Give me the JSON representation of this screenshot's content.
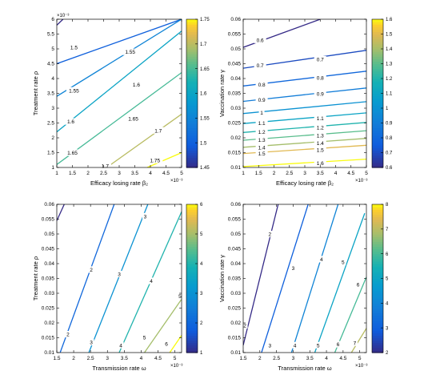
{
  "figure": {
    "background": "#ffffff"
  },
  "chart_data": [
    {
      "type": "contour",
      "xlabel": "Efficacy losing rate β₂",
      "ylabel": "Treatment rate ρ",
      "x_exponent": "×10⁻³",
      "y_exponent": "×10⁻³",
      "xlim": [
        1,
        5
      ],
      "ylim": [
        1,
        6
      ],
      "xticks": [
        "1",
        "1.5",
        "2",
        "2.5",
        "3",
        "3.5",
        "4",
        "4.5",
        "5"
      ],
      "yticks": [
        "1",
        "1.5",
        "2",
        "2.5",
        "3",
        "3.5",
        "4",
        "4.5",
        "5",
        "5.5",
        "6"
      ],
      "colorbar": {
        "min": 1.45,
        "max": 1.75,
        "ticks": [
          "1.45",
          "1.5",
          "1.55",
          "1.6",
          "1.65",
          "1.7",
          "1.75"
        ]
      },
      "contours": [
        {
          "level": 1.45,
          "label": "",
          "points": [
            [
              1,
              5.8
            ],
            [
              1.2,
              6.0
            ]
          ]
        },
        {
          "level": 1.5,
          "label": "1.5",
          "label_at": [
            1.55,
            5.05
          ],
          "points": [
            [
              1,
              4.5
            ],
            [
              5,
              6.0
            ]
          ]
        },
        {
          "level": 1.55,
          "label": "1.55",
          "label_at": [
            3.35,
            4.9
          ],
          "points": [
            [
              1,
              3.4
            ],
            [
              5,
              6.0
            ]
          ]
        },
        {
          "level": 1.55,
          "label": "1.55",
          "label_at": [
            1.55,
            3.6
          ],
          "points": []
        },
        {
          "level": 1.6,
          "label": "1.6",
          "label_at": [
            3.55,
            3.8
          ],
          "points": [
            [
              1,
              2.2
            ],
            [
              5,
              5.6
            ]
          ]
        },
        {
          "level": 1.6,
          "label": "1.6",
          "label_at": [
            1.45,
            2.55
          ],
          "points": []
        },
        {
          "level": 1.65,
          "label": "1.65",
          "label_at": [
            3.45,
            2.65
          ],
          "points": [
            [
              1,
              1.1
            ],
            [
              5,
              4.2
            ]
          ]
        },
        {
          "level": 1.65,
          "label": "1.65",
          "label_at": [
            1.5,
            1.5
          ],
          "points": []
        },
        {
          "level": 1.7,
          "label": "1.7",
          "label_at": [
            4.25,
            2.25
          ],
          "points": [
            [
              2.6,
              1.0
            ],
            [
              5,
              2.8
            ]
          ]
        },
        {
          "level": 1.7,
          "label": "1.7",
          "label_at": [
            2.55,
            1.05
          ],
          "points": []
        },
        {
          "level": 1.75,
          "label": "1.75",
          "label_at": [
            4.15,
            1.25
          ],
          "points": [
            [
              3.9,
              1.0
            ],
            [
              5,
              1.5
            ]
          ]
        }
      ]
    },
    {
      "type": "contour",
      "xlabel": "Efficacy losing rate β₂",
      "ylabel": "Vaccination rate γ",
      "x_exponent": "×10⁻³",
      "y_exponent": "",
      "xlim": [
        1,
        5
      ],
      "ylim": [
        0.01,
        0.06
      ],
      "xticks": [
        "1",
        "1.5",
        "2",
        "2.5",
        "3",
        "3.5",
        "4",
        "4.5",
        "5"
      ],
      "yticks": [
        "0.01",
        "0.015",
        "0.02",
        "0.025",
        "0.03",
        "0.035",
        "0.04",
        "0.045",
        "0.05",
        "0.055",
        "0.06"
      ],
      "colorbar": {
        "min": 0.6,
        "max": 1.6,
        "ticks": [
          "0.6",
          "0.7",
          "0.8",
          "0.9",
          "1",
          "1.1",
          "1.2",
          "1.3",
          "1.4",
          "1.5",
          "1.6"
        ]
      },
      "contours": [
        {
          "level": 0.6,
          "label": "0.6",
          "label_at": [
            1.55,
            0.053
          ],
          "points": [
            [
              1,
              0.0505
            ],
            [
              3.5,
              0.06
            ]
          ]
        },
        {
          "level": 0.7,
          "label": "0.7",
          "label_at": [
            1.55,
            0.0445
          ],
          "points": [
            [
              1,
              0.0435
            ],
            [
              5,
              0.0495
            ]
          ]
        },
        {
          "level": 0.7,
          "label": "0.7",
          "label_at": [
            3.5,
            0.0465
          ],
          "points": []
        },
        {
          "level": 0.8,
          "label": "0.8",
          "label_at": [
            1.6,
            0.038
          ],
          "points": [
            [
              1,
              0.0375
            ],
            [
              5,
              0.0425
            ]
          ]
        },
        {
          "level": 0.8,
          "label": "0.8",
          "label_at": [
            3.5,
            0.0403
          ],
          "points": []
        },
        {
          "level": 0.9,
          "label": "0.9",
          "label_at": [
            1.6,
            0.0328
          ],
          "points": [
            [
              1,
              0.0323
            ],
            [
              5,
              0.0368
            ]
          ]
        },
        {
          "level": 0.9,
          "label": "0.9",
          "label_at": [
            3.5,
            0.0348
          ],
          "points": []
        },
        {
          "level": 1.0,
          "label": "1",
          "label_at": [
            1.6,
            0.0285
          ],
          "points": [
            [
              1,
              0.0282
            ],
            [
              5,
              0.0322
            ]
          ]
        },
        {
          "level": 1.1,
          "label": "1.1",
          "label_at": [
            1.6,
            0.025
          ],
          "points": [
            [
              1,
              0.0248
            ],
            [
              5,
              0.0284
            ]
          ]
        },
        {
          "level": 1.1,
          "label": "1.1",
          "label_at": [
            3.5,
            0.0266
          ],
          "points": []
        },
        {
          "level": 1.2,
          "label": "1.2",
          "label_at": [
            1.6,
            0.022
          ],
          "points": [
            [
              1,
              0.0218
            ],
            [
              5,
              0.0252
            ]
          ]
        },
        {
          "level": 1.2,
          "label": "1.2",
          "label_at": [
            3.5,
            0.0235
          ],
          "points": []
        },
        {
          "level": 1.3,
          "label": "1.3",
          "label_at": [
            1.6,
            0.0193
          ],
          "points": [
            [
              1,
              0.0192
            ],
            [
              5,
              0.0224
            ]
          ]
        },
        {
          "level": 1.3,
          "label": "1.3",
          "label_at": [
            3.5,
            0.0208
          ],
          "points": []
        },
        {
          "level": 1.4,
          "label": "1.4",
          "label_at": [
            1.6,
            0.0168
          ],
          "points": [
            [
              1,
              0.0168
            ],
            [
              5,
              0.0198
            ]
          ]
        },
        {
          "level": 1.4,
          "label": "1.4",
          "label_at": [
            3.5,
            0.0183
          ],
          "points": []
        },
        {
          "level": 1.5,
          "label": "1.5",
          "label_at": [
            1.6,
            0.0147
          ],
          "points": [
            [
              1,
              0.0147
            ],
            [
              5,
              0.0175
            ]
          ]
        },
        {
          "level": 1.5,
          "label": "1.5",
          "label_at": [
            3.5,
            0.016
          ],
          "points": []
        },
        {
          "level": 1.6,
          "label": "1.6",
          "label_at": [
            3.5,
            0.0115
          ],
          "points": [
            [
              1,
              0.0103
            ],
            [
              5,
              0.0128
            ]
          ]
        }
      ]
    },
    {
      "type": "contour",
      "xlabel": "Transmission rate ω",
      "ylabel": "Treatment rate ρ",
      "x_exponent": "×10⁻³",
      "y_exponent": "",
      "xlim": [
        1.5,
        5.2
      ],
      "ylim": [
        0.01,
        0.06
      ],
      "xticks": [
        "1.5",
        "2",
        "2.5",
        "3",
        "3.5",
        "4",
        "4.5",
        "5"
      ],
      "yticks": [
        "0.01",
        "0.015",
        "0.02",
        "0.025",
        "0.03",
        "0.035",
        "0.04",
        "0.045",
        "0.05",
        "0.055",
        "0.06"
      ],
      "colorbar": {
        "min": 1,
        "max": 6,
        "ticks": [
          "1",
          "2",
          "3",
          "4",
          "5",
          "6"
        ]
      },
      "contours": [
        {
          "level": 1,
          "label": "",
          "points": [
            [
              1.5,
              0.0545
            ],
            [
              1.72,
              0.06
            ]
          ]
        },
        {
          "level": 2,
          "label": "2",
          "label_at": [
            2.52,
            0.038
          ],
          "points": [
            [
              1.6,
              0.01
            ],
            [
              3.2,
              0.06
            ]
          ]
        },
        {
          "level": 2,
          "label": "2",
          "label_at": [
            1.83,
            0.0162
          ],
          "points": []
        },
        {
          "level": 3,
          "label": "3",
          "label_at": [
            3.35,
            0.0365
          ],
          "points": [
            [
              2.45,
              0.01
            ],
            [
              4.2,
              0.06
            ]
          ]
        },
        {
          "level": 3,
          "label": "3",
          "label_at": [
            2.52,
            0.0135
          ],
          "points": []
        },
        {
          "level": 3,
          "label": "3",
          "label_at": [
            4.12,
            0.056
          ],
          "points": []
        },
        {
          "level": 4,
          "label": "4",
          "label_at": [
            4.3,
            0.0342
          ],
          "points": [
            [
              3.35,
              0.01
            ],
            [
              5.2,
              0.0575
            ]
          ]
        },
        {
          "level": 4,
          "label": "4",
          "label_at": [
            3.4,
            0.0125
          ],
          "points": []
        },
        {
          "level": 5,
          "label": "5",
          "label_at": [
            4.1,
            0.0152
          ],
          "points": [
            [
              4.1,
              0.01
            ],
            [
              5.2,
              0.028
            ]
          ]
        },
        {
          "level": 5,
          "label": "5",
          "label_at": [
            5.15,
            0.029
          ],
          "points": []
        },
        {
          "level": 6,
          "label": "6",
          "label_at": [
            4.75,
            0.013
          ],
          "points": [
            [
              4.85,
              0.01
            ],
            [
              5.2,
              0.0158
            ]
          ]
        }
      ]
    },
    {
      "type": "contour",
      "xlabel": "Transmission rate ω",
      "ylabel": "Vaccination rate γ",
      "x_exponent": "×10⁻³",
      "y_exponent": "",
      "xlim": [
        1.5,
        5.2
      ],
      "ylim": [
        0.01,
        0.06
      ],
      "xticks": [
        "1.5",
        "2",
        "2.5",
        "3",
        "3.5",
        "4",
        "4.5",
        "5"
      ],
      "yticks": [
        "0.01",
        "0.015",
        "0.02",
        "0.025",
        "0.03",
        "0.035",
        "0.04",
        "0.045",
        "0.05",
        "0.055",
        "0.06"
      ],
      "colorbar": {
        "min": 2,
        "max": 8,
        "ticks": [
          "2",
          "3",
          "4",
          "5",
          "6",
          "7",
          "8"
        ]
      },
      "contours": [
        {
          "level": 2,
          "label": "2",
          "label_at": [
            2.3,
            0.05
          ],
          "points": [
            [
              1.5,
              0.0125
            ],
            [
              2.55,
              0.06
            ]
          ]
        },
        {
          "level": 2,
          "label": "2",
          "label_at": [
            1.55,
            0.0192
          ],
          "points": []
        },
        {
          "level": 3,
          "label": "3",
          "label_at": [
            3.0,
            0.0385
          ],
          "points": [
            [
              2.05,
              0.01
            ],
            [
              3.45,
              0.06
            ]
          ]
        },
        {
          "level": 3,
          "label": "3",
          "label_at": [
            2.3,
            0.0125
          ],
          "points": []
        },
        {
          "level": 4,
          "label": "4",
          "label_at": [
            3.85,
            0.0415
          ],
          "points": [
            [
              2.95,
              0.01
            ],
            [
              4.35,
              0.06
            ]
          ]
        },
        {
          "level": 4,
          "label": "4",
          "label_at": [
            3.05,
            0.0125
          ],
          "points": []
        },
        {
          "level": 5,
          "label": "5",
          "label_at": [
            4.5,
            0.0405
          ],
          "points": [
            [
              3.65,
              0.01
            ],
            [
              5.15,
              0.057
            ]
          ]
        },
        {
          "level": 5,
          "label": "5",
          "label_at": [
            3.75,
            0.0125
          ],
          "points": []
        },
        {
          "level": 6,
          "label": "6",
          "label_at": [
            4.95,
            0.033
          ],
          "points": [
            [
              4.25,
              0.01
            ],
            [
              5.2,
              0.0355
            ]
          ]
        },
        {
          "level": 6,
          "label": "6",
          "label_at": [
            4.35,
            0.0128
          ],
          "points": []
        },
        {
          "level": 7,
          "label": "7",
          "label_at": [
            4.85,
            0.0133
          ],
          "points": [
            [
              4.75,
              0.01
            ],
            [
              5.2,
              0.0182
            ]
          ]
        }
      ]
    }
  ]
}
